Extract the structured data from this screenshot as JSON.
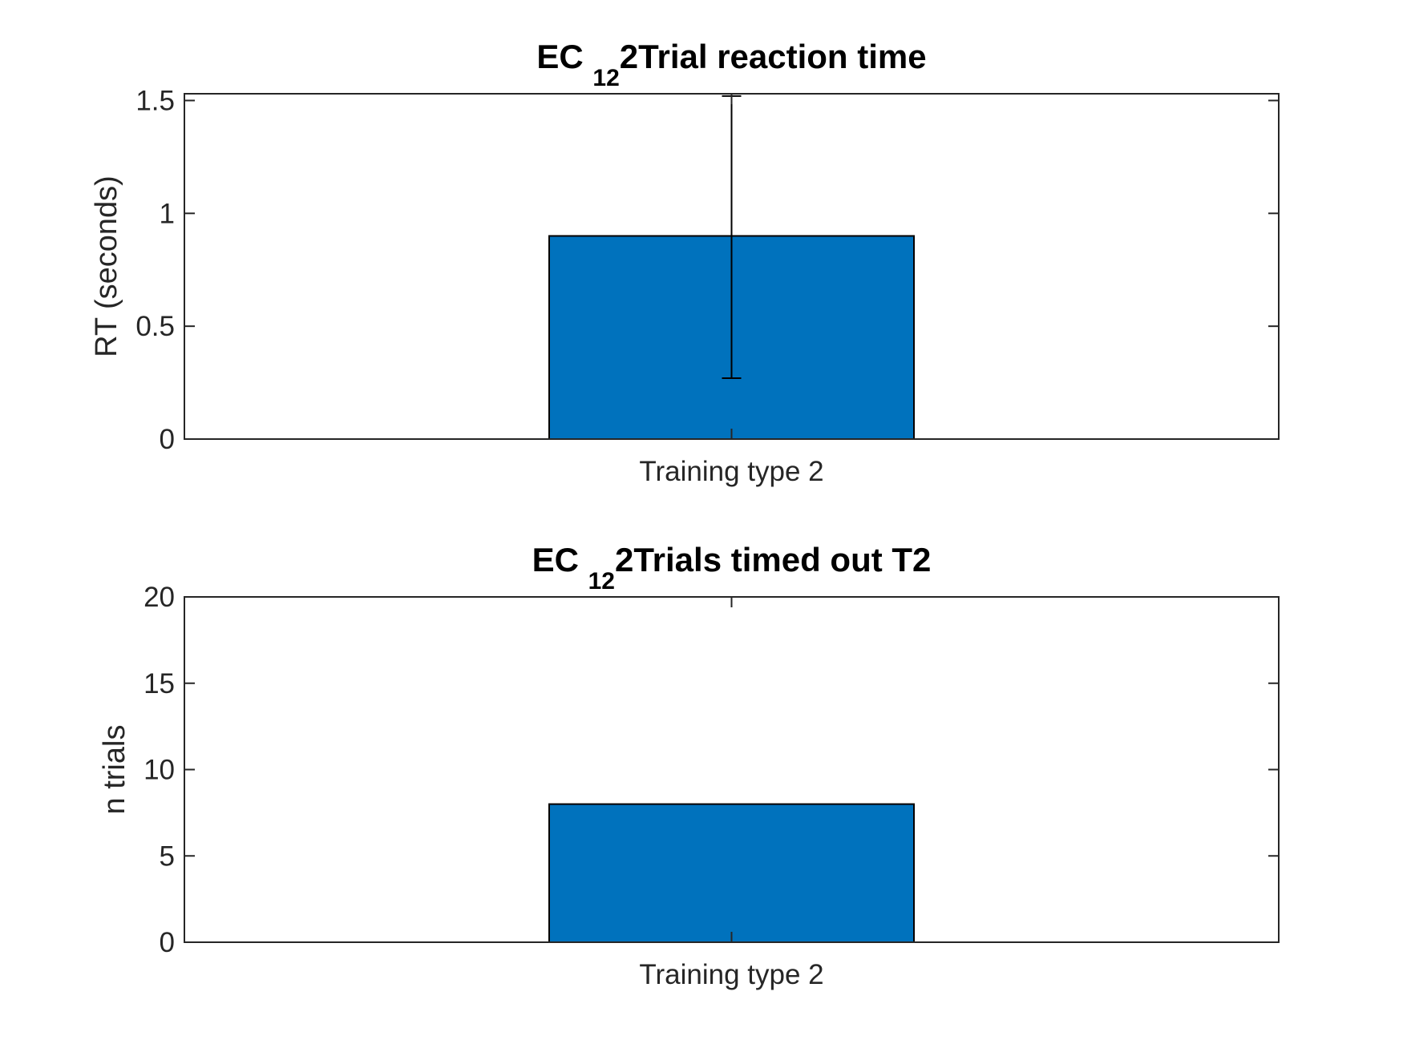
{
  "chart_data": [
    {
      "type": "bar",
      "title_main": "EC ",
      "title_sub": "12",
      "title_rest": "2Trial reaction time",
      "xlabel": "",
      "ylabel": "RT (seconds)",
      "categories": [
        "Training type 2"
      ],
      "values": [
        0.9
      ],
      "error_lower": [
        0.27
      ],
      "error_upper": [
        1.52
      ],
      "ylim": [
        0,
        1.53
      ],
      "yticks": [
        0,
        0.5,
        1,
        1.5
      ],
      "ytick_labels": [
        "0",
        "0.5",
        "1",
        "1.5"
      ],
      "grid": false,
      "bar_color": "#0072BD"
    },
    {
      "type": "bar",
      "title_main": "EC ",
      "title_sub": "12",
      "title_rest": "2Trials timed out T2",
      "xlabel": "",
      "ylabel": "n trials",
      "categories": [
        "Training type 2"
      ],
      "values": [
        8
      ],
      "ylim": [
        0,
        20
      ],
      "yticks": [
        0,
        5,
        10,
        15,
        20
      ],
      "ytick_labels": [
        "0",
        "5",
        "10",
        "15",
        "20"
      ],
      "grid": false,
      "bar_color": "#0072BD"
    }
  ]
}
